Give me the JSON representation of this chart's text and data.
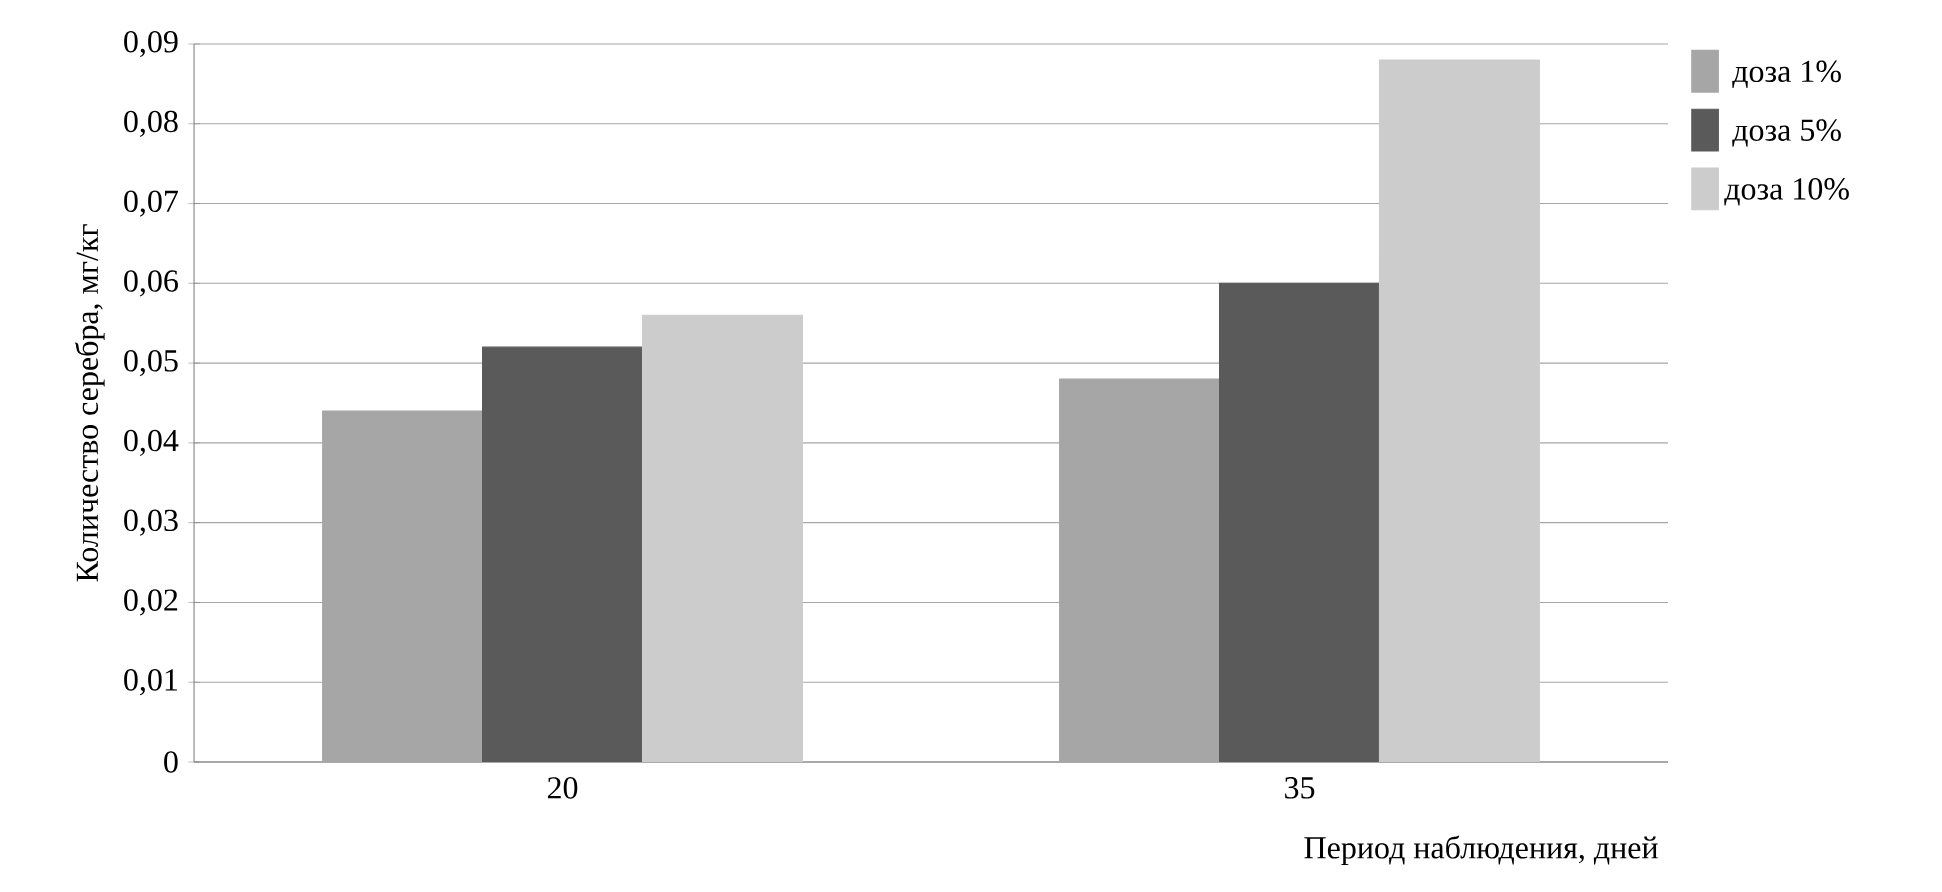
{
  "chart_data": {
    "type": "bar",
    "xlabel": "Период наблюдения, дней",
    "ylabel": "Количество серебра, мг/кг",
    "categories": [
      "20",
      "35"
    ],
    "series": [
      {
        "name": "доза 1%",
        "color": "#a6a6a6",
        "values": [
          0.044,
          0.048
        ]
      },
      {
        "name": "доза 5%",
        "color": "#5a5a5a",
        "values": [
          0.052,
          0.06
        ]
      },
      {
        "name": "доза 10%",
        "color": "#cccccc",
        "values": [
          0.056,
          0.088
        ]
      }
    ],
    "ylim": [
      0,
      0.09
    ],
    "yticks": [
      0,
      {
        "value": 0.01,
        "label": "0,01"
      },
      {
        "value": 0.02,
        "label": "0,02"
      },
      {
        "value": 0.03,
        "label": "0,03"
      },
      {
        "value": 0.04,
        "label": "0,04"
      },
      {
        "value": 0.05,
        "label": "0,05"
      },
      {
        "value": 0.06,
        "label": "0,06"
      },
      {
        "value": 0.07,
        "label": "0,07"
      },
      {
        "value": 0.08,
        "label": "0,08"
      },
      {
        "value": 0.09,
        "label": "0,09"
      }
    ],
    "grid": "y",
    "legend": "top right"
  }
}
